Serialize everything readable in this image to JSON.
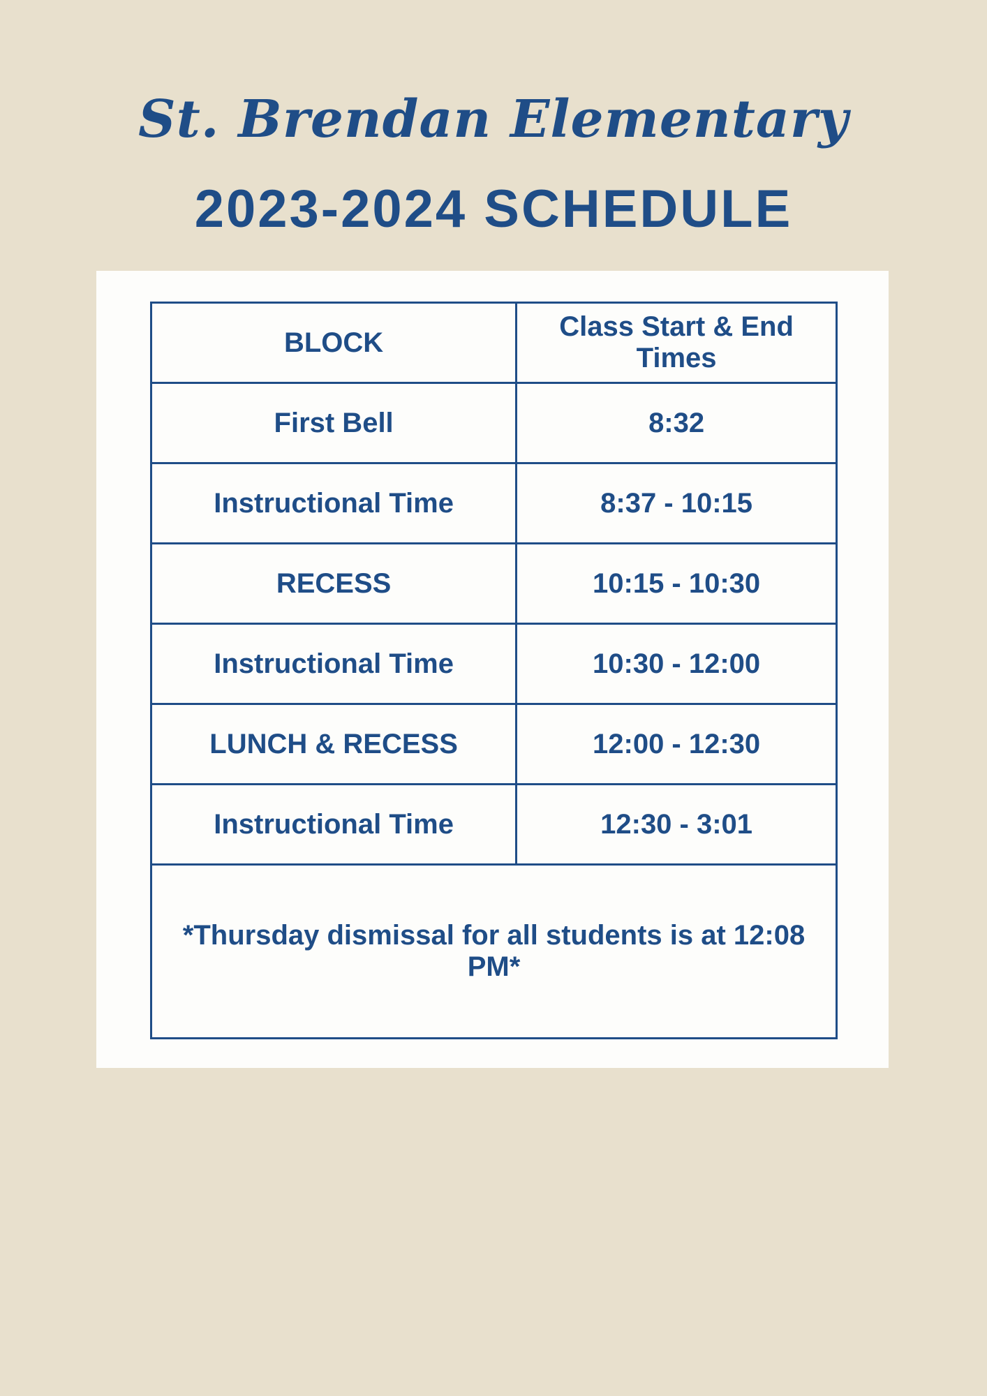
{
  "page": {
    "school_name": "St. Brendan Elementary",
    "schedule_title": "2023-2024 SCHEDULE"
  },
  "table": {
    "header": {
      "block": "BLOCK",
      "times": "Class Start & End Times"
    },
    "rows": [
      {
        "block": "First Bell",
        "times": "8:32"
      },
      {
        "block": "Instructional Time",
        "times": "8:37 - 10:15"
      },
      {
        "block": "RECESS",
        "times": "10:15 - 10:30"
      },
      {
        "block": "Instructional Time",
        "times": "10:30 - 12:00"
      },
      {
        "block": "LUNCH & RECESS",
        "times": "12:00 - 12:30"
      },
      {
        "block": "Instructional Time",
        "times": "12:30 - 3:01"
      }
    ],
    "footnote": "*Thursday dismissal for all students is at 12:08 PM*"
  },
  "colors": {
    "navy": "#1F4D87",
    "beige": "#E8E0CD",
    "card_white": "#FDFDFB"
  }
}
